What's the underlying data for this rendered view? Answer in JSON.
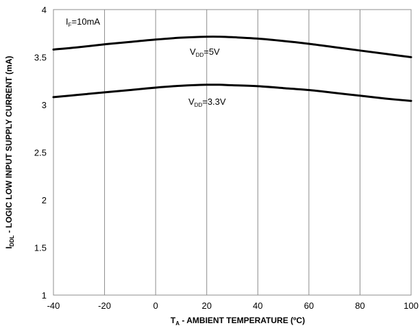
{
  "chart_data": {
    "type": "line",
    "xlabel": {
      "main": "T",
      "sub": "A",
      "rest": " - AMBIENT TEMPERATURE  (ºC)"
    },
    "ylabel": {
      "main": "I",
      "sub": "DDL",
      "rest": " - LOGIC LOW INPUT SUPPLY CURRENT (mA)"
    },
    "xlim": [
      -40,
      100
    ],
    "ylim": [
      1,
      4
    ],
    "xticks": [
      "-40",
      "-20",
      "0",
      "20",
      "40",
      "60",
      "80",
      "100"
    ],
    "xtick_values": [
      -40,
      -20,
      0,
      20,
      40,
      60,
      80,
      100
    ],
    "yticks": [
      "1",
      "1.5",
      "2",
      "2.5",
      "3",
      "3.5",
      "4"
    ],
    "ytick_values": [
      1,
      1.5,
      2,
      2.5,
      3,
      3.5,
      4
    ],
    "grid": {
      "vertical": true,
      "horizontal": false
    },
    "annotations": [
      {
        "main": "I",
        "sub": "F",
        "rest": "=10mA"
      },
      {
        "main": "V",
        "sub": "DD",
        "rest": "=5V"
      },
      {
        "main": "V",
        "sub": "DD",
        "rest": "=3.3V"
      }
    ],
    "series": [
      {
        "x": [
          -40,
          -30,
          -20,
          -10,
          0,
          10,
          20,
          25,
          30,
          40,
          50,
          60,
          70,
          80,
          90,
          100
        ],
        "values": [
          3.58,
          3.605,
          3.635,
          3.66,
          3.685,
          3.705,
          3.715,
          3.715,
          3.71,
          3.695,
          3.67,
          3.64,
          3.605,
          3.57,
          3.535,
          3.5
        ]
      },
      {
        "x": [
          -40,
          -30,
          -20,
          -10,
          0,
          10,
          20,
          25,
          30,
          40,
          50,
          60,
          70,
          80,
          90,
          100
        ],
        "values": [
          3.08,
          3.105,
          3.13,
          3.155,
          3.18,
          3.2,
          3.21,
          3.21,
          3.205,
          3.195,
          3.175,
          3.155,
          3.125,
          3.095,
          3.065,
          3.04
        ]
      }
    ]
  }
}
